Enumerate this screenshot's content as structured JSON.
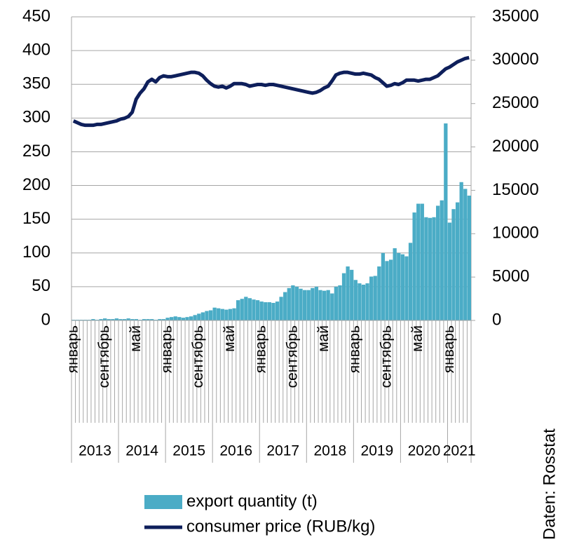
{
  "chart_data": {
    "type": "bar_line",
    "source": "Daten: Rosstat",
    "categories": [
      "январь",
      null,
      null,
      null,
      null,
      null,
      null,
      null,
      "сентябрь",
      null,
      null,
      null,
      null,
      null,
      null,
      null,
      "май",
      null,
      null,
      null,
      null,
      null,
      null,
      null,
      "январь",
      null,
      null,
      null,
      null,
      null,
      null,
      null,
      "сентябрь",
      null,
      null,
      null,
      null,
      null,
      null,
      null,
      "май",
      null,
      null,
      null,
      null,
      null,
      null,
      null,
      "январь",
      null,
      null,
      null,
      null,
      null,
      null,
      null,
      "сентябрь",
      null,
      null,
      null,
      null,
      null,
      null,
      null,
      "май",
      null,
      null,
      null,
      null,
      null,
      null,
      null,
      "январь",
      null,
      null,
      null,
      null,
      null,
      null,
      null,
      "сентябрь",
      null,
      null,
      null,
      null,
      null,
      null,
      null,
      "май",
      null,
      null,
      null,
      null,
      null,
      null,
      null,
      "январь",
      null,
      null,
      null,
      null,
      null
    ],
    "x_groups": [
      {
        "label": "2013",
        "count": 12
      },
      {
        "label": "2014",
        "count": 12
      },
      {
        "label": "2015",
        "count": 12
      },
      {
        "label": "2016",
        "count": 12
      },
      {
        "label": "2017",
        "count": 12
      },
      {
        "label": "2018",
        "count": 12
      },
      {
        "label": "2019",
        "count": 12
      },
      {
        "label": "2020",
        "count": 12
      },
      {
        "label": "2021",
        "count": 6
      }
    ],
    "series": [
      {
        "name": "export quantity (t)",
        "type": "bar",
        "color": "#4bacc6",
        "values": [
          1,
          1,
          1,
          1,
          1,
          2,
          1,
          2,
          3,
          2,
          2,
          3,
          2,
          2,
          3,
          2,
          2,
          1,
          2,
          2,
          2,
          1,
          2,
          2,
          4,
          5,
          6,
          5,
          4,
          5,
          6,
          8,
          10,
          12,
          14,
          15,
          19,
          18,
          17,
          16,
          17,
          18,
          30,
          32,
          35,
          33,
          31,
          30,
          28,
          27,
          27,
          26,
          28,
          35,
          42,
          48,
          52,
          50,
          47,
          45,
          45,
          48,
          50,
          45,
          44,
          45,
          40,
          50,
          52,
          70,
          80,
          75,
          60,
          55,
          53,
          55,
          65,
          66,
          80,
          100,
          88,
          90,
          107,
          100,
          98,
          95,
          115,
          160,
          173,
          173,
          153,
          152,
          153,
          170,
          178,
          292,
          145,
          165,
          175,
          205,
          195,
          185
        ]
      },
      {
        "name": "consumer price (RUB/kg)",
        "type": "line",
        "axis": "y2",
        "color": "#0e1f5b",
        "values": [
          23000,
          22800,
          22600,
          22500,
          22500,
          22500,
          22600,
          22600,
          22700,
          22800,
          22900,
          23000,
          23200,
          23300,
          23500,
          24000,
          25500,
          26200,
          26700,
          27500,
          27800,
          27500,
          28000,
          28200,
          28100,
          28100,
          28200,
          28300,
          28400,
          28500,
          28600,
          28600,
          28500,
          28200,
          27700,
          27300,
          27000,
          26900,
          27000,
          26800,
          27000,
          27300,
          27300,
          27300,
          27200,
          27000,
          27100,
          27200,
          27200,
          27100,
          27200,
          27200,
          27100,
          27000,
          26900,
          26800,
          26700,
          26600,
          26500,
          26400,
          26300,
          26200,
          26300,
          26500,
          26800,
          27000,
          27600,
          28300,
          28500,
          28600,
          28600,
          28500,
          28400,
          28400,
          28500,
          28400,
          28300,
          28000,
          27800,
          27400,
          27000,
          27100,
          27300,
          27200,
          27400,
          27700,
          27700,
          27700,
          27600,
          27700,
          27800,
          27800,
          28000,
          28200,
          28600,
          29000,
          29200,
          29500,
          29800,
          30000,
          30200,
          30300
        ]
      }
    ],
    "ylim": [
      0,
      450
    ],
    "yticks": [
      0,
      50,
      100,
      150,
      200,
      250,
      300,
      350,
      400,
      450
    ],
    "y2lim": [
      0,
      35000
    ],
    "y2ticks": [
      0,
      5000,
      10000,
      15000,
      20000,
      25000,
      30000,
      35000
    ],
    "grid": true
  }
}
